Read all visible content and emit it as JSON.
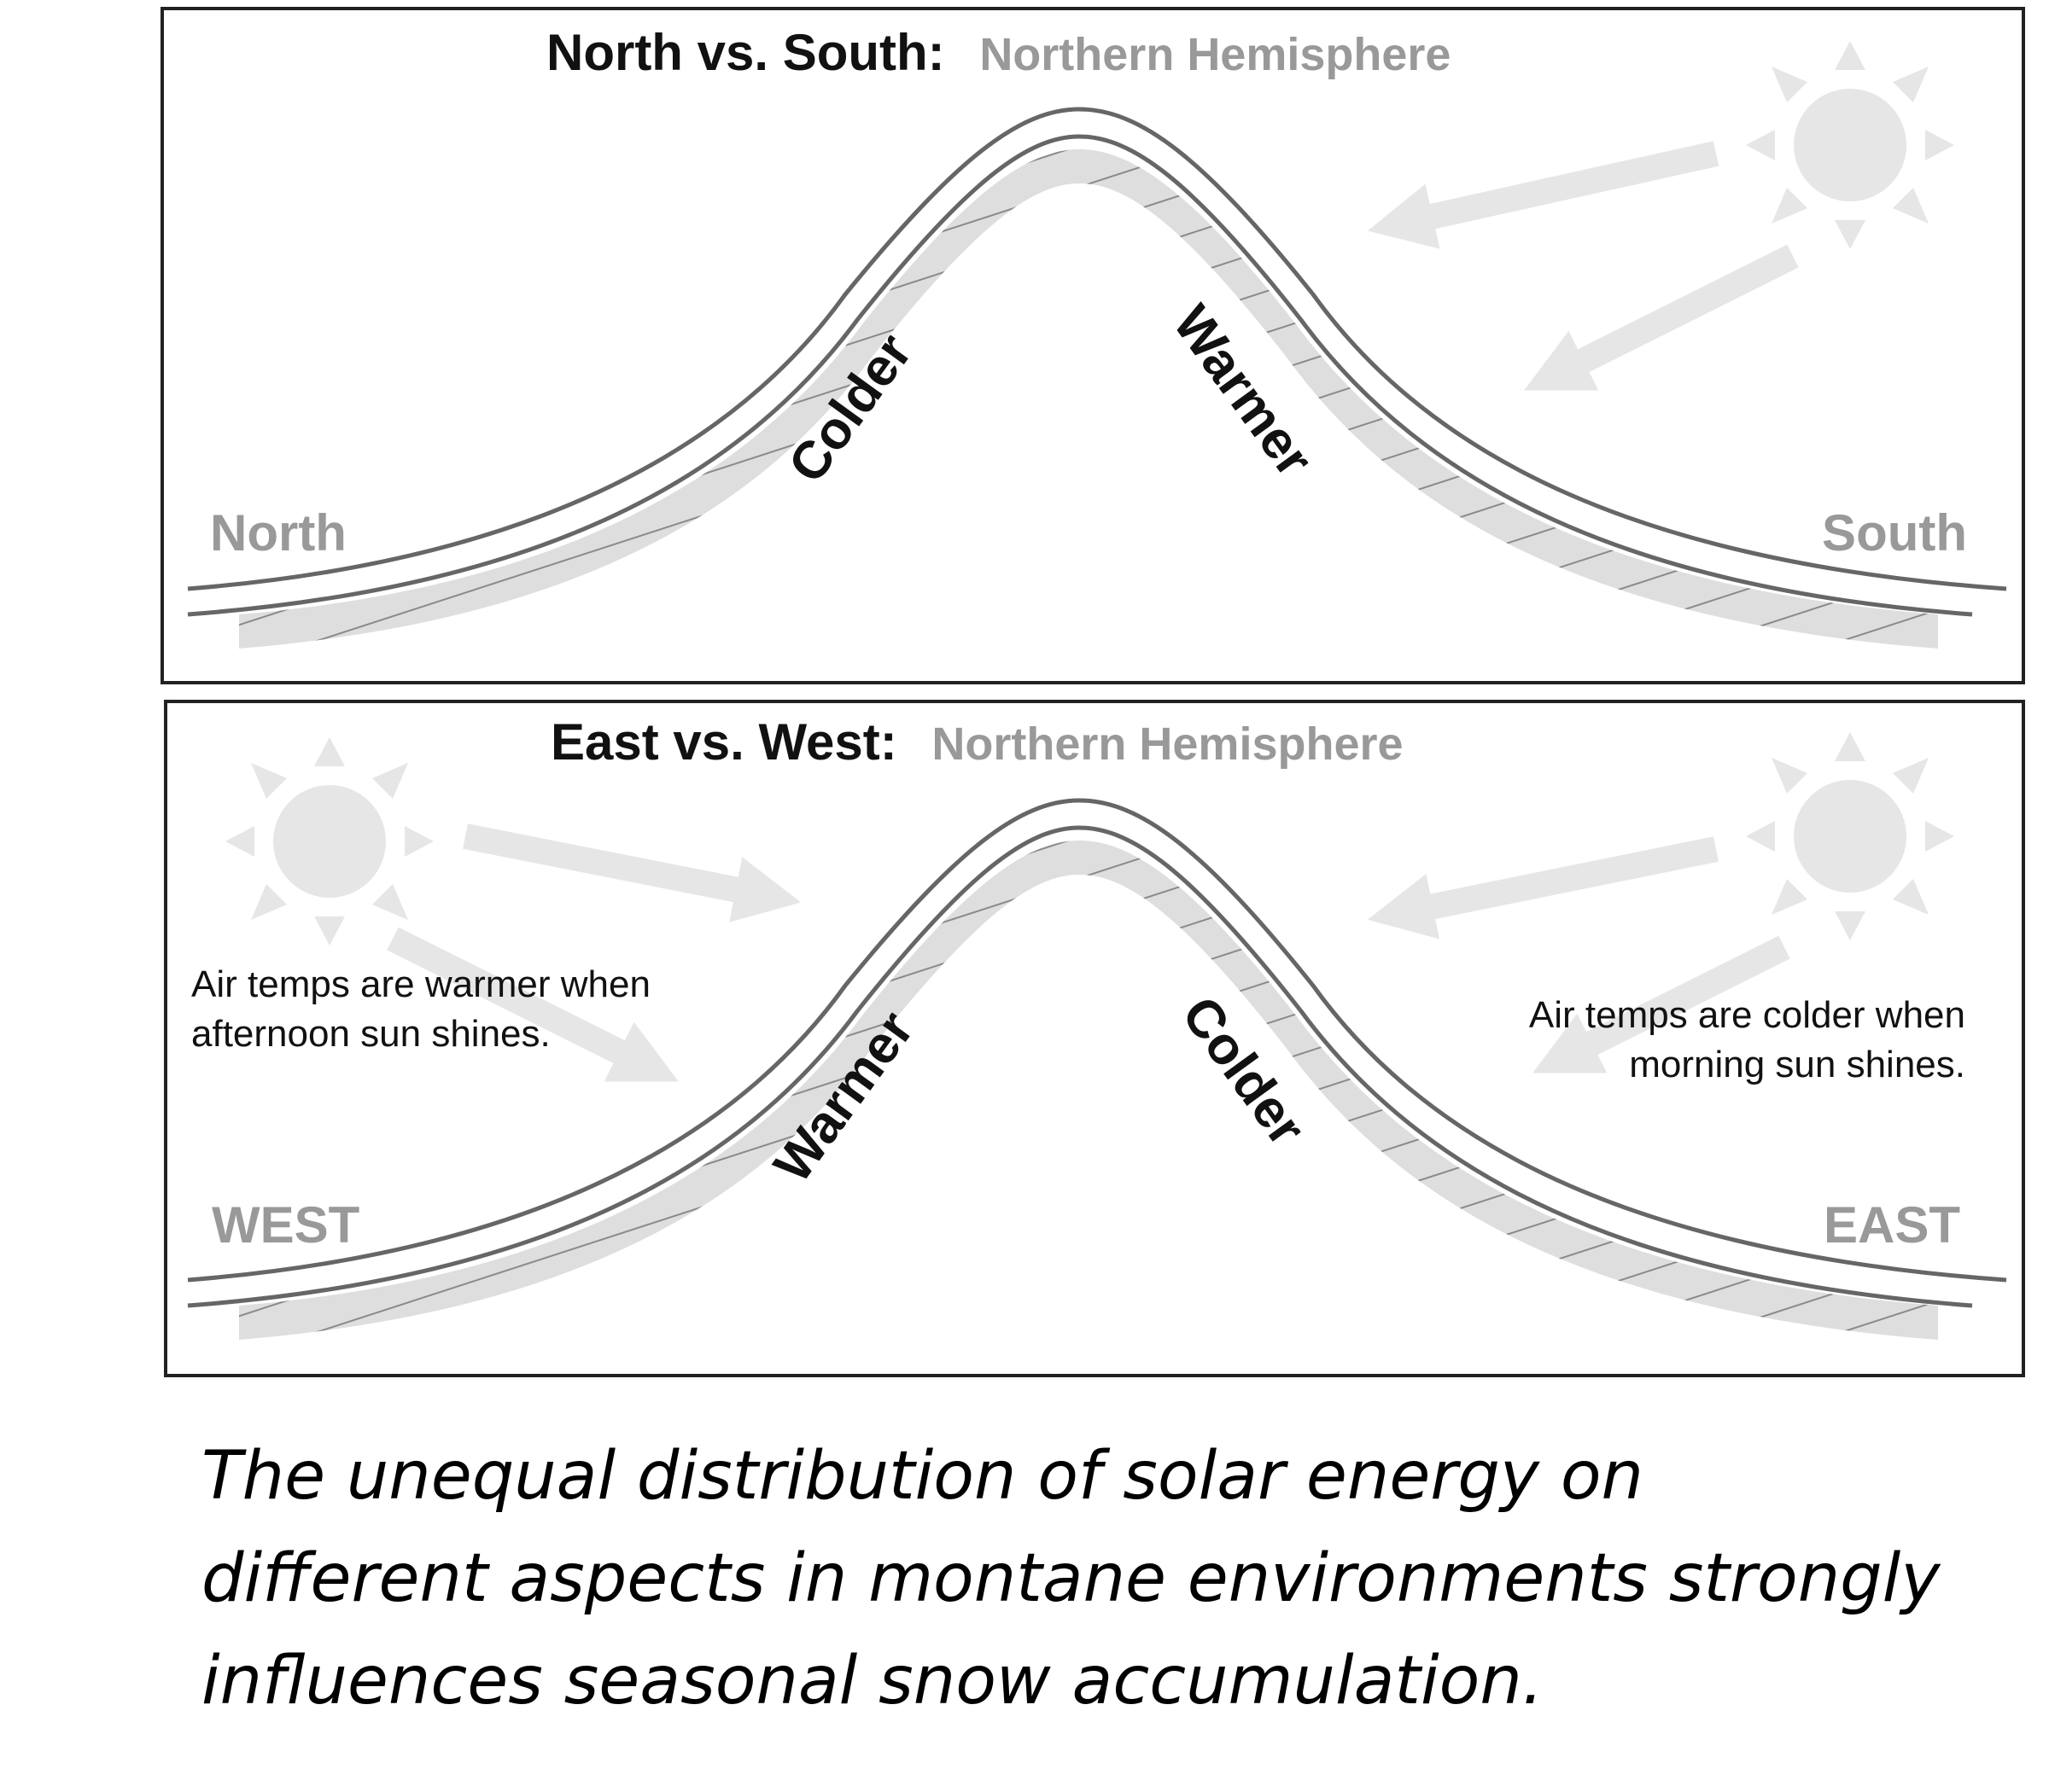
{
  "panel_north_south": {
    "title_bold": "North vs. South:",
    "title_gray": "Northern Hemisphere",
    "left_direction": "North",
    "right_direction": "South",
    "left_slope": "Colder",
    "right_slope": "Warmer"
  },
  "panel_east_west": {
    "title_bold": "East vs. West:",
    "title_gray": "Northern Hemisphere",
    "left_direction": "WEST",
    "right_direction": "EAST",
    "left_slope": "Warmer",
    "right_slope": "Colder",
    "left_note": [
      "Air temps are warmer when",
      "afternoon sun shines."
    ],
    "right_note": [
      "Air temps are colder when",
      "morning sun shines."
    ]
  },
  "caption": [
    "The unequal distribution of solar energy on",
    "different aspects in montane environments strongly",
    "influences seasonal snow accumulation."
  ],
  "colors": {
    "frame": "#222222",
    "label_gray": "#999999",
    "sun": "#e6e6e6",
    "arrow": "#e6e6e6",
    "hatch_fill": "#dddddd",
    "hatch_line": "#888888",
    "mountain_line": "#666666"
  }
}
